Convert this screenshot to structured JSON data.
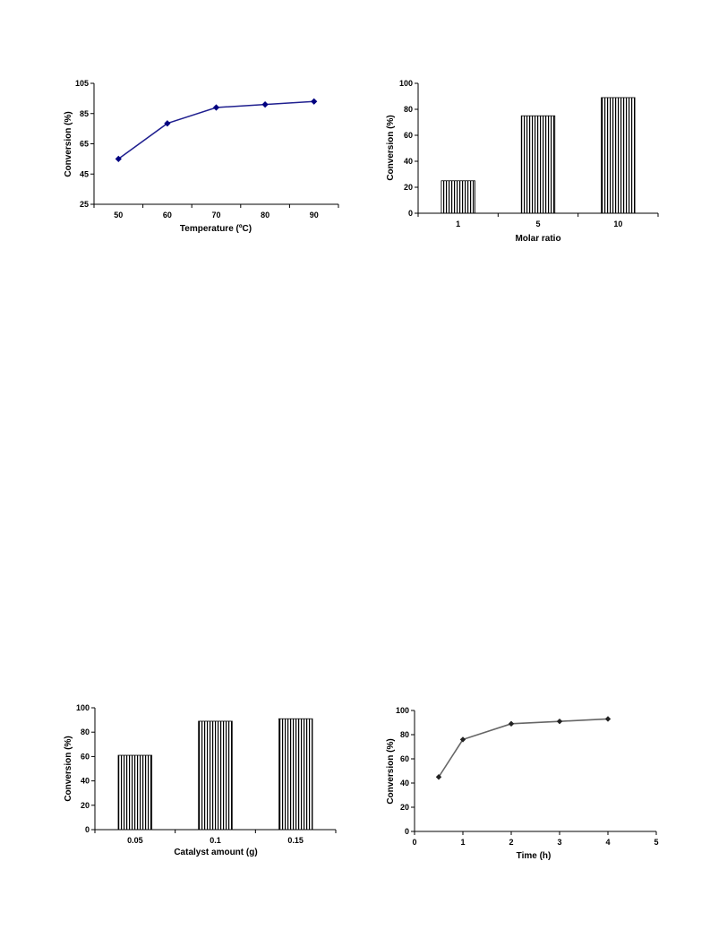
{
  "colors": {
    "line_blue": "#1f1f8f",
    "marker_blue": "#000080",
    "line_gray": "#666666",
    "marker_dark": "#222222",
    "bar_hatch": "#000000"
  },
  "chart_data": [
    {
      "id": "temperature",
      "type": "line",
      "xlabel": "Temperature (ºC)",
      "ylabel": "Conversion (%)",
      "categories": [
        "50",
        "60",
        "70",
        "80",
        "90"
      ],
      "values": [
        55,
        78.5,
        89,
        91,
        93
      ],
      "ylim": [
        25,
        105
      ],
      "yticks": [
        "25",
        "45",
        "65",
        "85",
        "105"
      ],
      "marker": "diamond",
      "grid": false
    },
    {
      "id": "molar_ratio",
      "type": "bar",
      "xlabel": "Molar ratio",
      "ylabel": "Conversion (%)",
      "categories": [
        "1",
        "5",
        "10"
      ],
      "values": [
        25,
        75,
        89
      ],
      "ylim": [
        0,
        100
      ],
      "yticks": [
        "0",
        "20",
        "40",
        "60",
        "80",
        "100"
      ],
      "fill": "vertical-hatch",
      "grid": false
    },
    {
      "id": "catalyst_amount",
      "type": "bar",
      "xlabel": "Catalyst amount (g)",
      "ylabel": "Conversion (%)",
      "categories": [
        "0.05",
        "0.1",
        "0.15"
      ],
      "values": [
        61,
        89,
        91
      ],
      "ylim": [
        0,
        100
      ],
      "yticks": [
        "0",
        "20",
        "40",
        "60",
        "80",
        "100"
      ],
      "fill": "vertical-hatch",
      "grid": false
    },
    {
      "id": "time",
      "type": "line",
      "xlabel": "Time (h)",
      "ylabel": "Conversion (%)",
      "x": [
        0.5,
        1,
        2,
        3,
        4
      ],
      "values": [
        45,
        76,
        89,
        91,
        93
      ],
      "xlim": [
        0,
        5
      ],
      "xticks": [
        "0",
        "1",
        "2",
        "3",
        "4",
        "5"
      ],
      "ylim": [
        0,
        100
      ],
      "yticks": [
        "0",
        "20",
        "40",
        "60",
        "80",
        "100"
      ],
      "marker": "diamond",
      "grid": false
    }
  ]
}
